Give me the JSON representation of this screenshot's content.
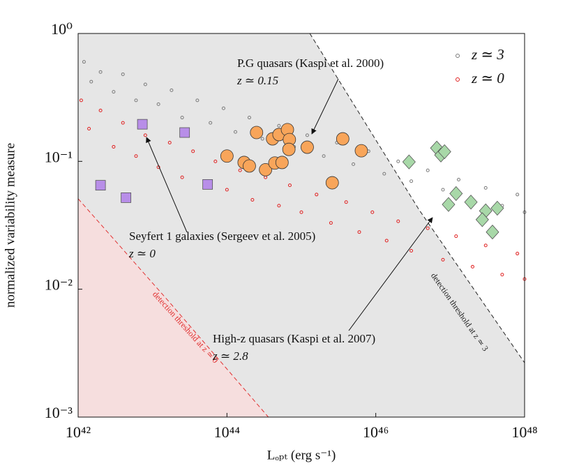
{
  "chart_data": {
    "type": "scatter",
    "x_label": "Lₒₚₜ (erg s⁻¹)",
    "y_label": "normalized variability measure",
    "xscale": "log",
    "yscale": "log",
    "xlim": [
      1e+42,
      1e+48
    ],
    "ylim": [
      0.001,
      1
    ],
    "xticks": [
      {
        "value": 1e+42,
        "label": "10⁴²"
      },
      {
        "value": 1e+44,
        "label": "10⁴⁴"
      },
      {
        "value": 1e+46,
        "label": "10⁴⁶"
      },
      {
        "value": 1e+48,
        "label": "10⁴⁸"
      }
    ],
    "yticks": [
      {
        "value": 0.001,
        "label": "10⁻³"
      },
      {
        "value": 0.01,
        "label": "10⁻²"
      },
      {
        "value": 0.1,
        "label": "10⁻¹"
      },
      {
        "value": 1,
        "label": "10⁰"
      }
    ],
    "legend": "upper right",
    "series": [
      {
        "name": "z ≃ 3",
        "color": "#7a7a7a",
        "marker": "small-circle",
        "x": [
          1.2e+42,
          1.5e+42,
          2e+42,
          3e+42,
          4e+42,
          6e+42,
          8e+42,
          1.2e+43,
          1.8e+43,
          2.5e+43,
          4e+43,
          6e+43,
          9e+43,
          1.3e+44,
          2e+44,
          3e+44,
          5e+44,
          8e+44,
          1.2e+45,
          2e+45,
          3e+45,
          5e+45,
          8e+45,
          1.3e+46,
          2e+46,
          3e+46,
          5e+46,
          8e+46,
          1.3e+47,
          2e+47,
          3e+47,
          5e+47,
          8e+47,
          1e+48
        ],
        "values": [
          0.6,
          0.42,
          0.5,
          0.35,
          0.48,
          0.3,
          0.4,
          0.28,
          0.36,
          0.22,
          0.3,
          0.2,
          0.26,
          0.17,
          0.22,
          0.15,
          0.19,
          0.13,
          0.16,
          0.11,
          0.14,
          0.095,
          0.12,
          0.08,
          0.1,
          0.07,
          0.085,
          0.06,
          0.072,
          0.05,
          0.062,
          0.045,
          0.055,
          0.04
        ]
      },
      {
        "name": "z ≃ 0",
        "color": "#e02020",
        "marker": "small-circle",
        "x": [
          1.1e+42,
          1.4e+42,
          2e+42,
          3e+42,
          4e+42,
          6e+42,
          8e+42,
          1.2e+43,
          1.7e+43,
          2.5e+43,
          3.5e+43,
          5e+43,
          7e+43,
          1e+44,
          1.5e+44,
          2.2e+44,
          3.3e+44,
          5e+44,
          7e+44,
          1e+45,
          1.6e+45,
          2.5e+45,
          4e+45,
          6e+45,
          9e+45,
          1.4e+46,
          2e+46,
          3e+46,
          5e+46,
          8e+46,
          1.2e+47,
          2e+47,
          3e+47,
          5e+47,
          8e+47,
          1e+48
        ],
        "values": [
          0.3,
          0.18,
          0.25,
          0.13,
          0.2,
          0.11,
          0.16,
          0.09,
          0.14,
          0.075,
          0.12,
          0.065,
          0.1,
          0.06,
          0.085,
          0.05,
          0.075,
          0.045,
          0.065,
          0.04,
          0.055,
          0.033,
          0.048,
          0.028,
          0.04,
          0.024,
          0.034,
          0.02,
          0.03,
          0.017,
          0.026,
          0.015,
          0.022,
          0.013,
          0.019,
          0.012
        ]
      },
      {
        "color": "#b88ee8",
        "marker": "square",
        "x": [
          2e+42,
          4.4e+42,
          7.3e+42,
          2.7e+43,
          5.5e+43
        ],
        "values": [
          0.065,
          0.052,
          0.195,
          0.168,
          0.066
        ]
      },
      {
        "color": "#f8a55a",
        "marker": "circle",
        "x": [
          1e+44,
          1.7e+44,
          2e+44,
          2.5e+44,
          3.3e+44,
          4.1e+44,
          4.4e+44,
          5e+44,
          5.5e+44,
          6.5e+44,
          6.9e+44,
          6.8e+44,
          1.2e+45,
          2.6e+45,
          3.6e+45,
          6.4e+45
        ],
        "values": [
          0.11,
          0.098,
          0.092,
          0.168,
          0.086,
          0.15,
          0.097,
          0.162,
          0.098,
          0.177,
          0.148,
          0.124,
          0.129,
          0.068,
          0.15,
          0.121
        ]
      },
      {
        "color": "#a8d8a8",
        "marker": "diamond",
        "x": [
          2.8e+46,
          6.6e+46,
          7.5e+46,
          8.4e+46,
          1.2e+47,
          9.5e+46,
          1.9e+47,
          3e+47,
          2.7e+47,
          4.3e+47,
          3.7e+47
        ],
        "values": [
          0.099,
          0.127,
          0.112,
          0.119,
          0.056,
          0.046,
          0.048,
          0.041,
          0.035,
          0.043,
          0.028
        ]
      }
    ],
    "thresholds": [
      {
        "label": "detection threshold at z ≃ 0",
        "color": "#e03030",
        "x": [
          1e+42,
          1.6e+43,
          3.6e+44
        ],
        "values": [
          0.051,
          0.0082,
          0.001
        ]
      },
      {
        "label": "detection threshold at z ≃ 3",
        "color": "#222222",
        "x": [
          1.3e+45,
          3.8e+46,
          1e+48
        ],
        "values": [
          1,
          0.042,
          0.00266
        ]
      }
    ],
    "annotations": [
      {
        "text": "P.G quasars (Kaspi et al. 2000)",
        "subtext": "z ≃ 0.15"
      },
      {
        "text": "Seyfert 1 galaxies (Sergeev et al. 2005)",
        "subtext": "z ≃ 0"
      },
      {
        "text": "High-z quasars (Kaspi et al. 2007)",
        "subtext": "z ≃ 2.8"
      }
    ]
  }
}
